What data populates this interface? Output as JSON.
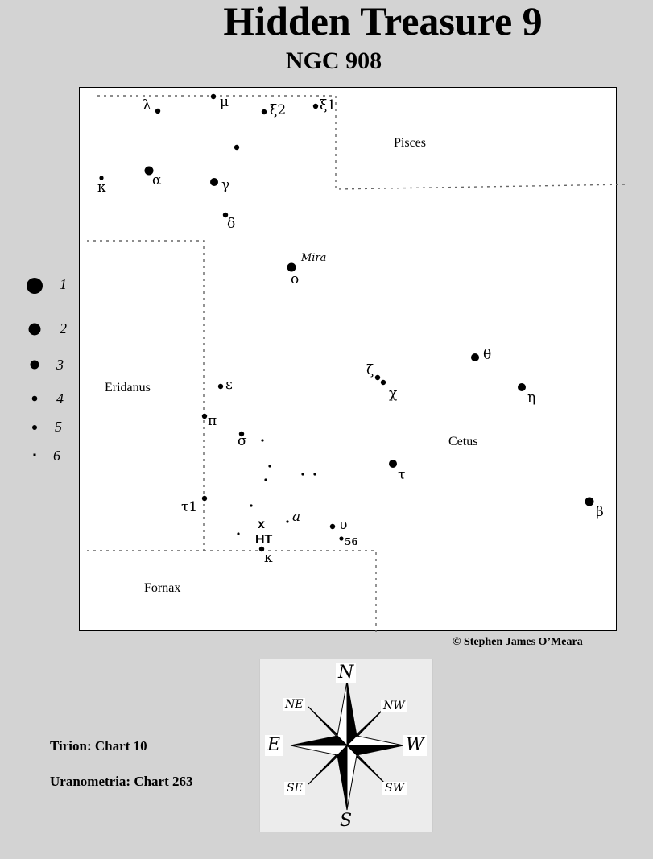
{
  "title": "Hidden Treasure 9",
  "subtitle": "NGC  908",
  "copyright": "© Stephen James O’Meara",
  "legend": [
    {
      "label": "1",
      "mag": 1
    },
    {
      "label": "2",
      "mag": 2
    },
    {
      "label": "3",
      "mag": 3
    },
    {
      "label": "4",
      "mag": 4
    },
    {
      "label": "5",
      "mag": 5
    },
    {
      "label": "6",
      "mag": 6
    }
  ],
  "references": {
    "tirion": "Tirion: Chart 10",
    "uranometria": "Uranometria: Chart 263"
  },
  "constellations": {
    "pisces": "Pisces",
    "eridanus": "Eridanus",
    "cetus": "Cetus",
    "fornax": "Fornax"
  },
  "target": {
    "marker": "x",
    "label": "HT"
  },
  "stars": [
    {
      "label": "λ",
      "mag": 4
    },
    {
      "label": "μ",
      "mag": 4
    },
    {
      "label": "ξ2",
      "mag": 4
    },
    {
      "label": "ξ1",
      "mag": 4
    },
    {
      "label": "",
      "mag": 4
    },
    {
      "label": "κ",
      "mag": 5
    },
    {
      "label": "α",
      "mag": 2
    },
    {
      "label": "γ",
      "mag": 3
    },
    {
      "label": "δ",
      "mag": 4
    },
    {
      "label": "ο",
      "sublabel": "Mira",
      "mag": 2
    },
    {
      "label": "θ",
      "mag": 3
    },
    {
      "label": "ζ",
      "mag": 4
    },
    {
      "label": "χ",
      "mag": 4
    },
    {
      "label": "η",
      "mag": 3
    },
    {
      "label": "ε",
      "mag": 4
    },
    {
      "label": "π",
      "mag": 4
    },
    {
      "label": "σ",
      "mag": 4
    },
    {
      "label": "Cetus_none",
      "mag": 6
    },
    {
      "label": "τ",
      "mag": 3
    },
    {
      "label": "β",
      "mag": 2
    },
    {
      "label": "τ1",
      "mag": 4
    },
    {
      "label": "a",
      "mag": 6
    },
    {
      "label": "υ",
      "mag": 4
    },
    {
      "label": "56",
      "mag": 5
    },
    {
      "label": "κ",
      "mag": 4
    }
  ],
  "compass": {
    "n": "N",
    "s": "S",
    "e": "E",
    "w": "W",
    "ne": "NE",
    "nw": "NW",
    "se": "SE",
    "sw": "SW"
  }
}
